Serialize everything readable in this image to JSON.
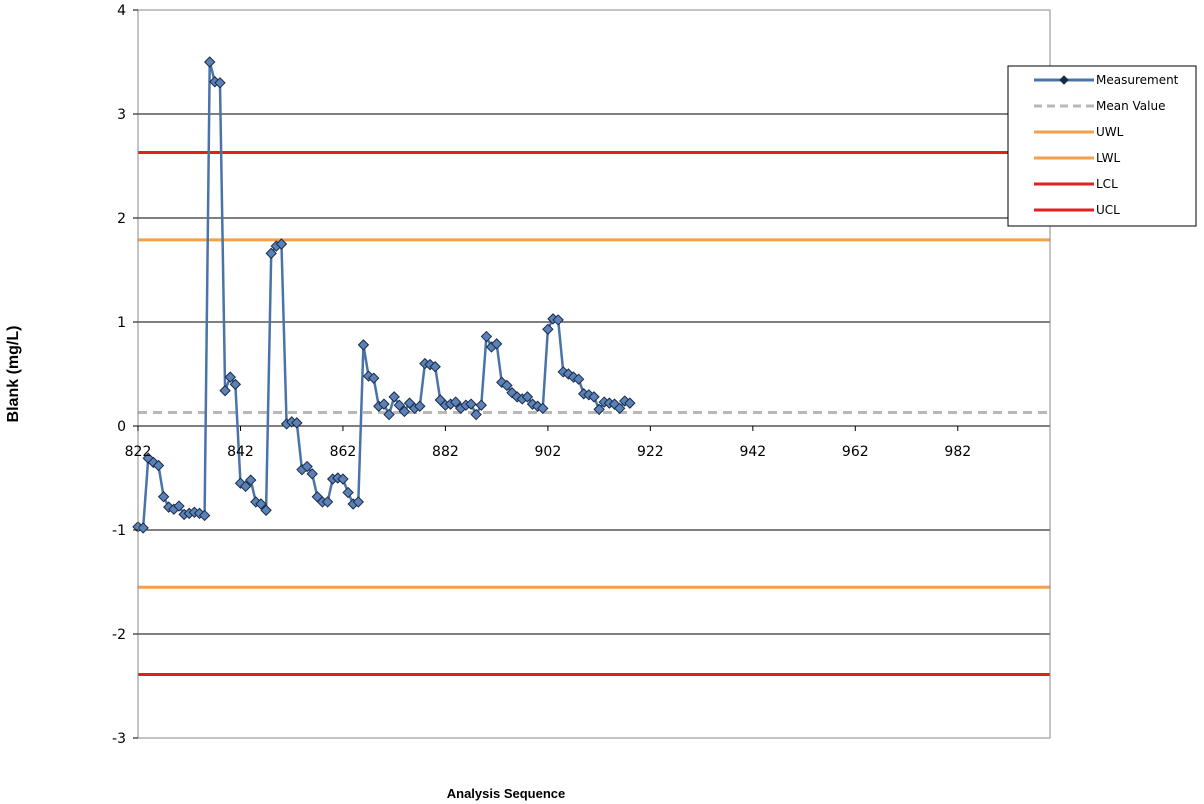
{
  "chart_data": {
    "type": "line",
    "xlabel": "Analysis Sequence",
    "ylabel": "Blank (mg/L)",
    "xlim": [
      822,
      1000
    ],
    "ylim": [
      -3,
      4
    ],
    "x_ticks": [
      822,
      842,
      862,
      882,
      902,
      922,
      942,
      962,
      982
    ],
    "y_ticks": [
      4,
      3,
      2,
      1,
      0,
      -1,
      -2,
      -3
    ],
    "grid": "horizontal",
    "legend_position": "top-right",
    "series": [
      {
        "name": "Measurement",
        "color": "#4a74a8",
        "marker": "diamond",
        "x": [
          822,
          823,
          824,
          825,
          826,
          827,
          828,
          829,
          830,
          831,
          832,
          833,
          834,
          835,
          836,
          837,
          838,
          839,
          840,
          841,
          842,
          843,
          844,
          845,
          846,
          847,
          848,
          849,
          850,
          851,
          852,
          853,
          854,
          855,
          856,
          857,
          858,
          859,
          860,
          861,
          862,
          863,
          864,
          865,
          866,
          867,
          868,
          869,
          870,
          871,
          872,
          873,
          874,
          875,
          876,
          877,
          878,
          879,
          880,
          881,
          882,
          883,
          884,
          885,
          886,
          887,
          888,
          889,
          890,
          891,
          892,
          893,
          894,
          895,
          896,
          897,
          898,
          899,
          900,
          901,
          902,
          903,
          904,
          905,
          906,
          907,
          908,
          909,
          910,
          911,
          912,
          913,
          914,
          915,
          916,
          917,
          918
        ],
        "values": [
          -0.97,
          -0.98,
          -0.31,
          -0.35,
          -0.38,
          -0.68,
          -0.78,
          -0.8,
          -0.77,
          -0.85,
          -0.84,
          -0.83,
          -0.84,
          -0.86,
          3.5,
          3.31,
          3.3,
          0.34,
          0.47,
          0.4,
          -0.55,
          -0.58,
          -0.52,
          -0.73,
          -0.75,
          -0.81,
          1.66,
          1.73,
          1.75,
          0.02,
          0.04,
          0.03,
          -0.42,
          -0.39,
          -0.46,
          -0.68,
          -0.73,
          -0.73,
          -0.51,
          -0.5,
          -0.51,
          -0.64,
          -0.75,
          -0.73,
          0.78,
          0.48,
          0.46,
          0.19,
          0.21,
          0.11,
          0.28,
          0.2,
          0.14,
          0.22,
          0.17,
          0.19,
          0.6,
          0.59,
          0.57,
          0.25,
          0.2,
          0.21,
          0.23,
          0.17,
          0.2,
          0.21,
          0.11,
          0.2,
          0.86,
          0.76,
          0.79,
          0.42,
          0.39,
          0.32,
          0.28,
          0.26,
          0.28,
          0.21,
          0.19,
          0.17,
          0.93,
          1.03,
          1.02,
          0.52,
          0.5,
          0.47,
          0.45,
          0.31,
          0.3,
          0.28,
          0.16,
          0.23,
          0.22,
          0.21,
          0.17,
          0.24,
          0.22
        ]
      },
      {
        "name": "Mean Value",
        "color": "#b8b8b8",
        "style": "dashed",
        "value": 0.13
      },
      {
        "name": "UWL",
        "color": "#f3a04b",
        "style": "solid",
        "value": 1.79
      },
      {
        "name": "LWL",
        "color": "#f3a04b",
        "style": "solid",
        "value": -1.55
      },
      {
        "name": "LCL",
        "color": "#e02020",
        "style": "solid",
        "value": -2.39
      },
      {
        "name": "UCL",
        "color": "#e02020",
        "style": "solid",
        "value": 2.63
      }
    ]
  }
}
